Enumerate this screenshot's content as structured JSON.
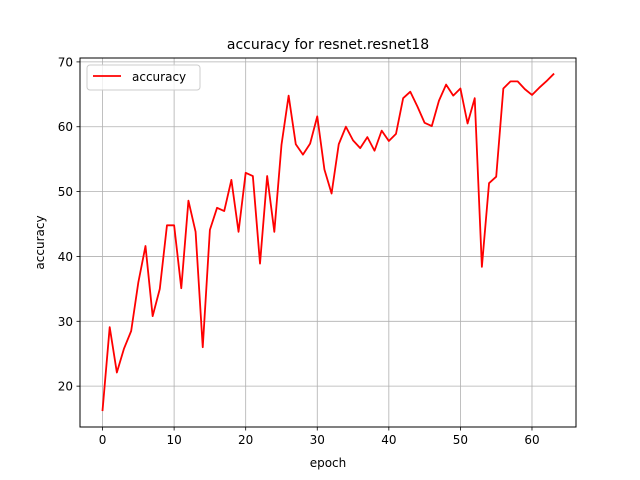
{
  "chart_data": {
    "type": "line",
    "title": "accuracy for resnet.resnet18",
    "xlabel": "epoch",
    "ylabel": "accuracy",
    "xlim": [
      -3.15,
      66.15
    ],
    "ylim": [
      13.7,
      70.6
    ],
    "xticks": [
      0,
      10,
      20,
      30,
      40,
      50,
      60
    ],
    "yticks": [
      20,
      30,
      40,
      50,
      60,
      70
    ],
    "grid": true,
    "legend": "upper left",
    "series": [
      {
        "name": "accuracy",
        "color": "#ff0000",
        "x": [
          0,
          1,
          2,
          3,
          4,
          5,
          6,
          7,
          8,
          9,
          10,
          11,
          12,
          13,
          14,
          15,
          16,
          17,
          18,
          19,
          20,
          21,
          22,
          23,
          24,
          25,
          26,
          27,
          28,
          29,
          30,
          31,
          32,
          33,
          34,
          35,
          36,
          37,
          38,
          39,
          40,
          41,
          42,
          43,
          44,
          45,
          46,
          47,
          48,
          49,
          50,
          51,
          52,
          53,
          54,
          55,
          56,
          57,
          58,
          59,
          60,
          61,
          62,
          63
        ],
        "y": [
          16.3,
          29.1,
          22.1,
          25.8,
          28.5,
          36.0,
          41.6,
          30.8,
          35.0,
          44.8,
          44.8,
          35.1,
          48.6,
          43.8,
          26.0,
          44.1,
          47.5,
          47.0,
          51.8,
          43.8,
          52.9,
          52.4,
          38.9,
          52.4,
          43.8,
          57.2,
          64.8,
          57.3,
          55.7,
          57.4,
          61.6,
          53.4,
          49.7,
          57.3,
          60.0,
          57.9,
          56.7,
          58.4,
          56.3,
          59.4,
          57.8,
          58.9,
          64.4,
          65.4,
          63.1,
          60.6,
          60.1,
          64.0,
          66.5,
          64.8,
          65.9,
          60.5,
          64.4,
          38.4,
          51.3,
          52.3,
          65.9,
          67.0,
          67.0,
          65.8,
          64.9,
          66.0,
          67.0,
          68.1
        ]
      }
    ]
  }
}
